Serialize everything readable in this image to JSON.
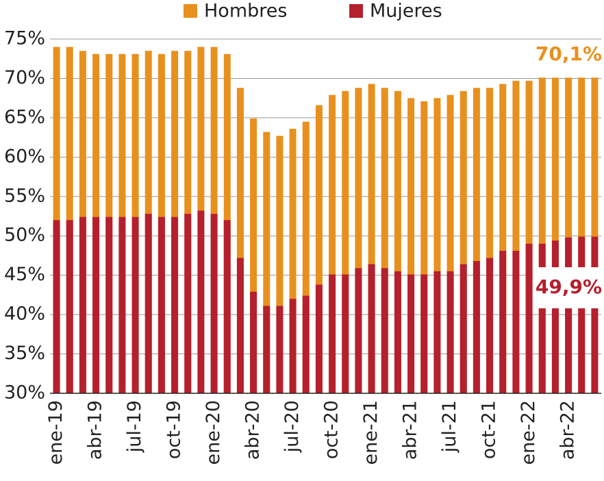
{
  "chart_data": {
    "type": "bar",
    "categories": [
      "ene-19",
      null,
      null,
      "abr-19",
      null,
      null,
      "jul-19",
      null,
      null,
      "oct-19",
      null,
      null,
      "ene-20",
      null,
      null,
      "abr-20",
      null,
      null,
      "jul-20",
      null,
      null,
      "oct-20",
      null,
      null,
      "ene-21",
      null,
      null,
      "abr-21",
      null,
      null,
      "jul-21",
      null,
      null,
      "oct-21",
      null,
      null,
      "ene-22",
      null,
      null,
      "abr-22",
      null,
      null
    ],
    "series": [
      {
        "name": "Hombres",
        "color": "#e8901e",
        "values": [
          74.0,
          74.0,
          73.5,
          73.1,
          73.1,
          73.1,
          73.1,
          73.5,
          73.1,
          73.5,
          73.5,
          74.0,
          74.0,
          73.1,
          68.8,
          64.9,
          63.2,
          62.7,
          63.6,
          64.5,
          66.6,
          67.9,
          68.4,
          68.8,
          69.3,
          68.8,
          68.4,
          67.5,
          67.1,
          67.5,
          67.9,
          68.4,
          68.8,
          68.8,
          69.3,
          69.7,
          69.7,
          70.1,
          70.1,
          70.1,
          70.1,
          70.1
        ]
      },
      {
        "name": "Mujeres",
        "color": "#b5202e",
        "values": [
          52.0,
          52.0,
          52.4,
          52.4,
          52.4,
          52.4,
          52.4,
          52.8,
          52.4,
          52.4,
          52.8,
          53.2,
          52.8,
          52.0,
          47.2,
          42.9,
          41.1,
          41.1,
          42.0,
          42.4,
          43.8,
          45.1,
          45.1,
          45.9,
          46.4,
          45.9,
          45.5,
          45.1,
          45.1,
          45.5,
          45.5,
          46.4,
          46.8,
          47.2,
          48.1,
          48.1,
          49.0,
          49.0,
          49.4,
          49.8,
          49.9,
          49.9
        ]
      }
    ],
    "annotations": [
      "70,1%",
      "49,9%"
    ],
    "ylim": [
      30,
      75
    ],
    "yticks": [
      {
        "value": 30,
        "label": "30%"
      },
      {
        "value": 35,
        "label": "35%"
      },
      {
        "value": 40,
        "label": "40%"
      },
      {
        "value": 45,
        "label": "45%"
      },
      {
        "value": 50,
        "label": "50%"
      },
      {
        "value": 55,
        "label": "55%"
      },
      {
        "value": 60,
        "label": "60%"
      },
      {
        "value": 65,
        "label": "65%"
      },
      {
        "value": 70,
        "label": "70%"
      },
      {
        "value": 75,
        "label": "75%"
      }
    ],
    "grid": true
  }
}
